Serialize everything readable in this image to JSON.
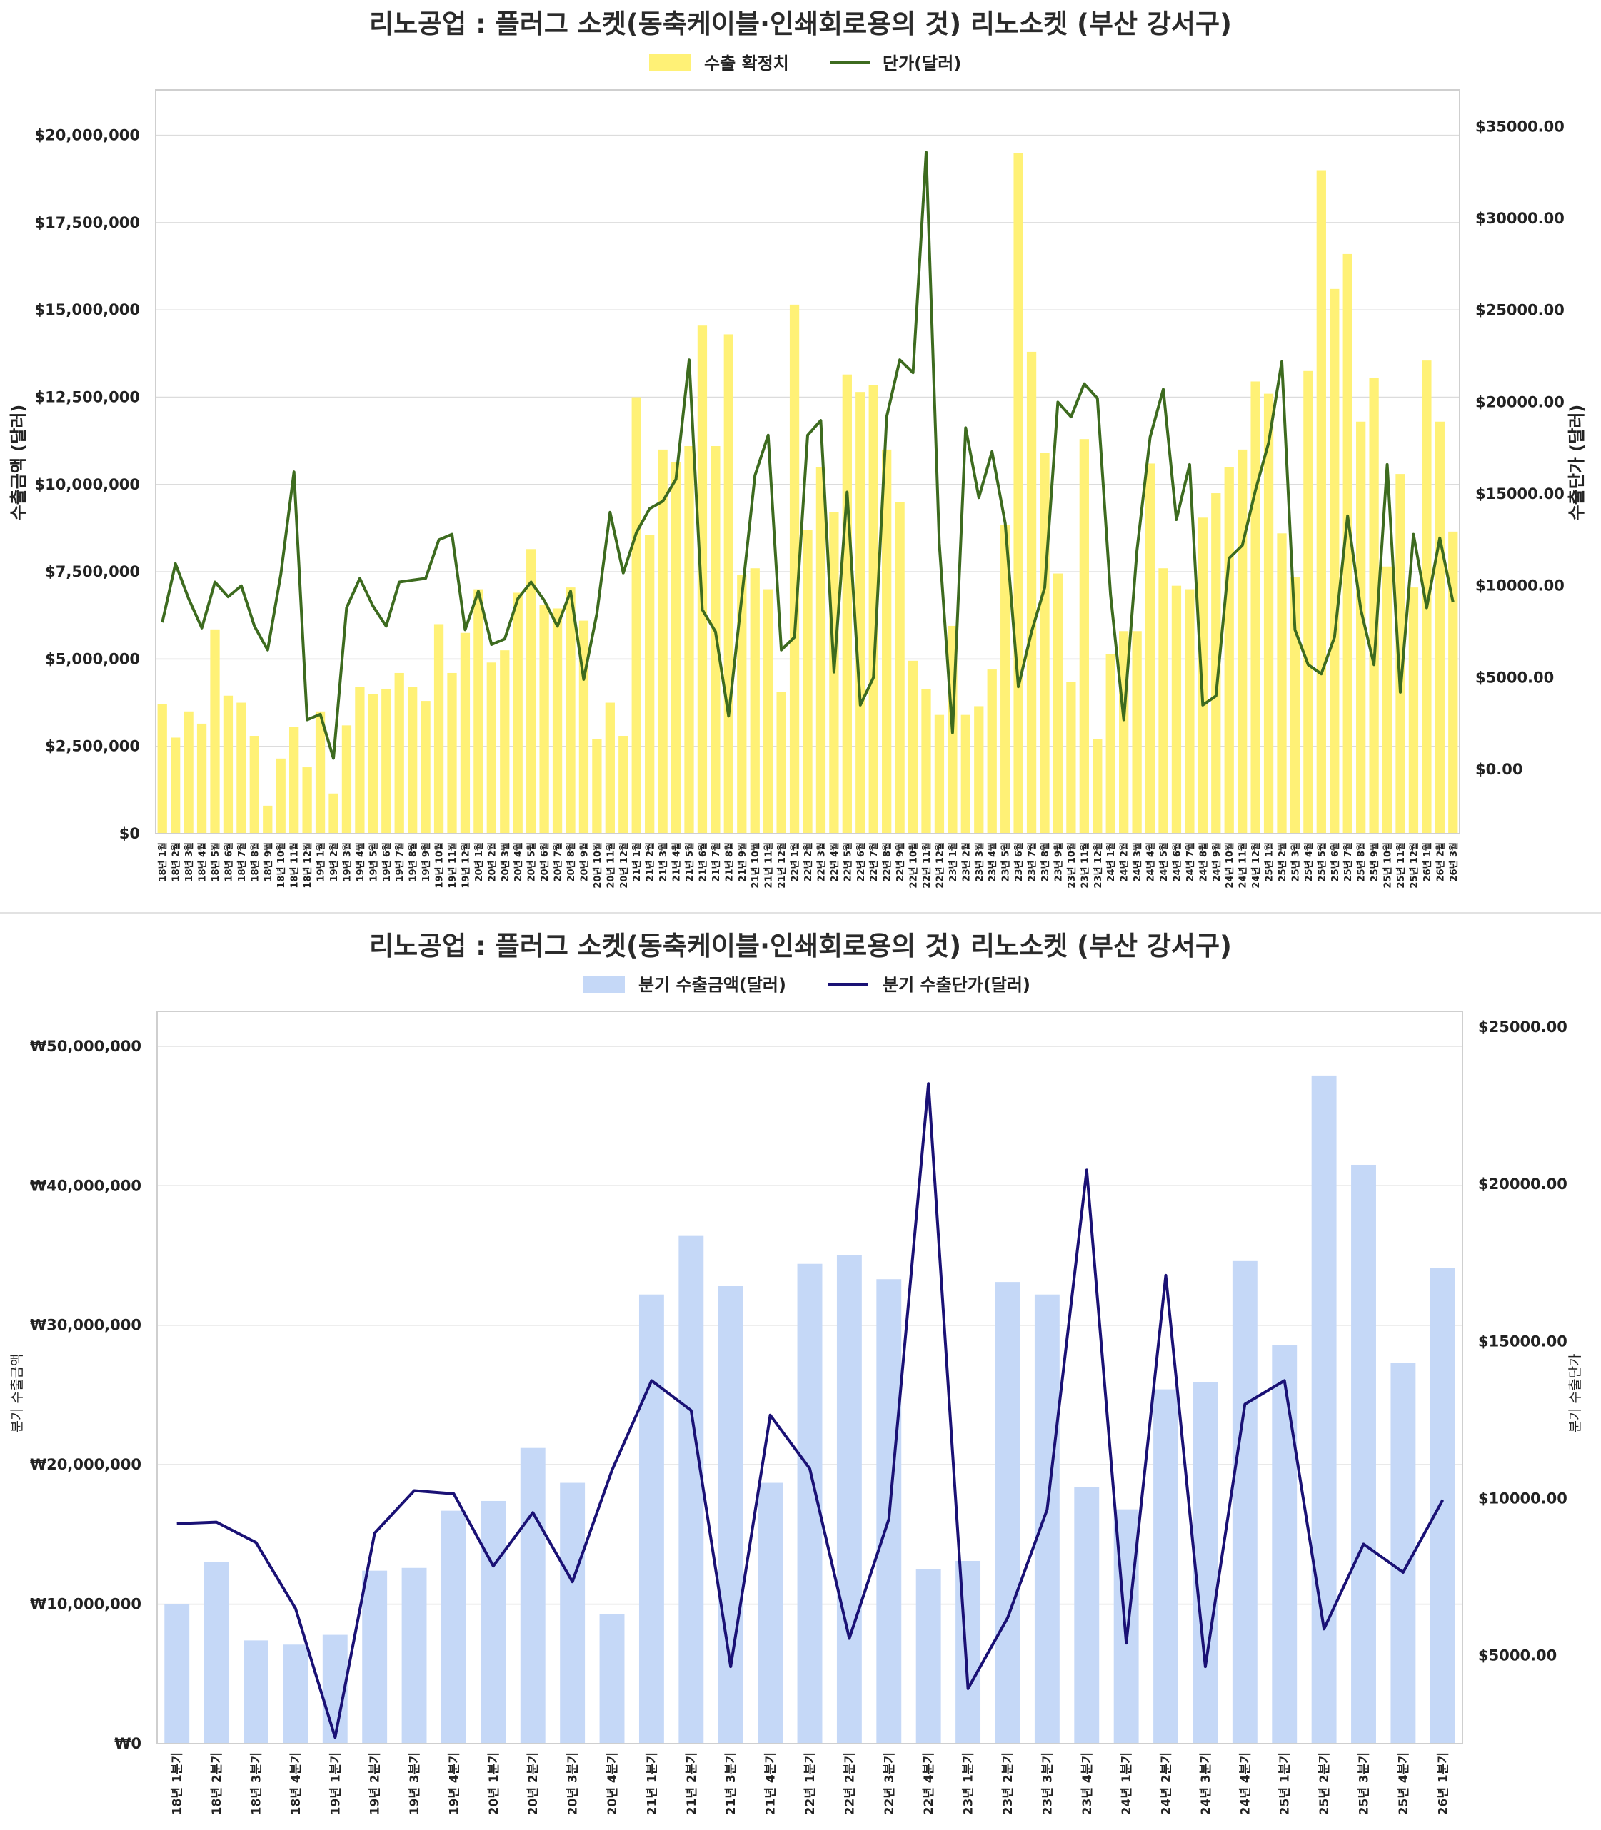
{
  "chart_data": [
    {
      "type": "bar",
      "title": "리노공업 : 플러그 소켓(동축케이블·인쇄회로용의 것) 리노소켓 (부산 강서구)",
      "legend": {
        "position": "top-center",
        "bar_label": "수출 확정치",
        "line_label": "단가(달러)"
      },
      "ylabel_left": "수출금액 (달러)",
      "ylabel_right": "수출단가 (달러)",
      "ylim_left": [
        0,
        21300000
      ],
      "ylim_right": [
        -3500,
        37000
      ],
      "yticks_left": [
        "$0",
        "$2,500,000",
        "$5,000,000",
        "$7,500,000",
        "$10,000,000",
        "$12,500,000",
        "$15,000,000",
        "$17,500,000",
        "$20,000,000"
      ],
      "yticks_left_values": [
        0,
        2500000,
        5000000,
        7500000,
        10000000,
        12500000,
        15000000,
        17500000,
        20000000
      ],
      "yticks_right": [
        "$0.00",
        "$5000.00",
        "$10000.00",
        "$15000.00",
        "$20000.00",
        "$25000.00",
        "$30000.00",
        "$35000.00"
      ],
      "yticks_right_values": [
        0,
        5000,
        10000,
        15000,
        20000,
        25000,
        30000,
        35000
      ],
      "grid": true,
      "colors": {
        "bar": "#fff176",
        "line": "#3d6b1f"
      },
      "categories": [
        "18년 1월",
        "18년 2월",
        "18년 3월",
        "18년 4월",
        "18년 5월",
        "18년 6월",
        "18년 7월",
        "18년 8월",
        "18년 9월",
        "18년 10월",
        "18년 11월",
        "18년 12월",
        "19년 1월",
        "19년 2월",
        "19년 3월",
        "19년 4월",
        "19년 5월",
        "19년 6월",
        "19년 7월",
        "19년 8월",
        "19년 9월",
        "19년 10월",
        "19년 11월",
        "19년 12월",
        "20년 1월",
        "20년 2월",
        "20년 3월",
        "20년 4월",
        "20년 5월",
        "20년 6월",
        "20년 7월",
        "20년 8월",
        "20년 9월",
        "20년 10월",
        "20년 11월",
        "20년 12월",
        "21년 1월",
        "21년 2월",
        "21년 3월",
        "21년 4월",
        "21년 5월",
        "21년 6월",
        "21년 7월",
        "21년 8월",
        "21년 9월",
        "21년 10월",
        "21년 11월",
        "21년 12월",
        "22년 1월",
        "22년 2월",
        "22년 3월",
        "22년 4월",
        "22년 5월",
        "22년 6월",
        "22년 7월",
        "22년 8월",
        "22년 9월",
        "22년 10월",
        "22년 11월",
        "22년 12월",
        "23년 1월",
        "23년 2월",
        "23년 3월",
        "23년 4월",
        "23년 5월",
        "23년 6월",
        "23년 7월",
        "23년 8월",
        "23년 9월",
        "23년 10월",
        "23년 11월",
        "23년 12월",
        "24년 1월",
        "24년 2월",
        "24년 3월",
        "24년 4월",
        "24년 5월",
        "24년 6월",
        "24년 7월",
        "24년 8월",
        "24년 9월",
        "24년 10월",
        "24년 11월",
        "24년 12월",
        "25년 1월",
        "25년 2월",
        "25년 3월",
        "25년 4월",
        "25년 5월",
        "25년 6월",
        "25년 7월",
        "25년 8월",
        "25년 9월",
        "25년 10월",
        "25년 11월",
        "25년 12월",
        "26년 1월",
        "26년 2월",
        "26년 3월"
      ],
      "bar_values": [
        3700000,
        2750000,
        3500000,
        3150000,
        5850000,
        3950000,
        3750000,
        2800000,
        800000,
        2150000,
        3050000,
        1900000,
        3500000,
        1150000,
        3100000,
        4200000,
        4000000,
        4150000,
        4600000,
        4200000,
        3800000,
        6000000,
        4600000,
        5750000,
        7000000,
        4900000,
        5250000,
        6900000,
        8150000,
        6550000,
        6450000,
        7050000,
        6100000,
        2700000,
        3750000,
        2800000,
        12500000,
        8550000,
        11000000,
        10650000,
        11100000,
        14550000,
        11100000,
        14300000,
        7400000,
        7600000,
        7000000,
        4050000,
        15150000,
        8700000,
        10500000,
        9200000,
        13150000,
        12650000,
        12850000,
        11000000,
        9500000,
        4950000,
        4150000,
        3400000,
        5950000,
        3400000,
        3650000,
        4700000,
        8850000,
        19500000,
        13800000,
        10900000,
        7450000,
        4350000,
        11300000,
        2700000,
        5150000,
        5800000,
        5800000,
        10600000,
        7600000,
        7100000,
        7000000,
        9050000,
        9750000,
        10500000,
        11000000,
        12950000,
        12600000,
        8600000,
        7350000,
        13250000,
        19000000,
        15600000,
        16600000,
        11800000,
        13050000,
        7650000,
        10300000,
        7050000,
        13550000,
        11800000,
        8650000
      ],
      "line_values": [
        8000,
        11200,
        9300,
        7700,
        10200,
        9400,
        10000,
        7800,
        6500,
        10600,
        16200,
        2700,
        3000,
        600,
        8800,
        10400,
        8900,
        7800,
        10200,
        10300,
        10400,
        12500,
        12800,
        7600,
        9700,
        6800,
        7100,
        9300,
        10200,
        9200,
        7800,
        9700,
        4900,
        8500,
        14000,
        10700,
        12900,
        14200,
        14600,
        15800,
        22300,
        8700,
        7500,
        2900,
        9400,
        16000,
        18200,
        6500,
        7200,
        18200,
        19000,
        5300,
        15100,
        3500,
        5000,
        19200,
        22300,
        21600,
        33600,
        12300,
        2000,
        18600,
        14800,
        17300,
        13400,
        4500,
        7500,
        9900,
        20000,
        19200,
        21000,
        20200,
        9500,
        2700,
        11900,
        18100,
        20700,
        13600,
        16600,
        3500,
        4000,
        11500,
        12200,
        15200,
        17800,
        22200,
        7600,
        5700,
        5200,
        7200,
        13800,
        8700,
        5700,
        16600,
        4200,
        12800,
        8800,
        12600,
        9100
      ]
    },
    {
      "type": "bar",
      "title": "리노공업 : 플러그 소켓(동축케이블·인쇄회로용의 것) 리노소켓 (부산 강서구)",
      "legend": {
        "position": "top-center",
        "bar_label": "분기 수출금액(달러)",
        "line_label": "분기 수출단가(달러)"
      },
      "ylabel_left": "분기 수출금액",
      "ylabel_right": "분기 수출단가",
      "ylim_left": [
        0,
        52500000
      ],
      "ylim_right": [
        2200,
        25500
      ],
      "yticks_left": [
        "₩0",
        "₩10,000,000",
        "₩20,000,000",
        "₩30,000,000",
        "₩40,000,000",
        "₩50,000,000"
      ],
      "yticks_left_values": [
        0,
        10000000,
        20000000,
        30000000,
        40000000,
        50000000
      ],
      "yticks_right": [
        "$5000.00",
        "$10000.00",
        "$15000.00",
        "$20000.00",
        "$25000.00"
      ],
      "yticks_right_values": [
        5000,
        10000,
        15000,
        20000,
        25000
      ],
      "grid": true,
      "colors": {
        "bar": "#c5d8f7",
        "line": "#1a1175"
      },
      "categories": [
        "18년 1분기",
        "18년 2분기",
        "18년 3분기",
        "18년 4분기",
        "19년 1분기",
        "19년 2분기",
        "19년 3분기",
        "19년 4분기",
        "20년 1분기",
        "20년 2분기",
        "20년 3분기",
        "20년 4분기",
        "21년 1분기",
        "21년 2분기",
        "21년 3분기",
        "21년 4분기",
        "22년 1분기",
        "22년 2분기",
        "22년 3분기",
        "22년 4분기",
        "23년 1분기",
        "23년 2분기",
        "23년 3분기",
        "23년 4분기",
        "24년 1분기",
        "24년 2분기",
        "24년 3분기",
        "24년 4분기",
        "25년 1분기",
        "25년 2분기",
        "25년 3분기",
        "25년 4분기",
        "26년 1분기"
      ],
      "bar_values": [
        10000000,
        13000000,
        7400000,
        7100000,
        7800000,
        12400000,
        12600000,
        16700000,
        17400000,
        21200000,
        18700000,
        9300000,
        32200000,
        36400000,
        32800000,
        18700000,
        34400000,
        35000000,
        33300000,
        12500000,
        13100000,
        33100000,
        32200000,
        18400000,
        16800000,
        25400000,
        25900000,
        34600000,
        28600000,
        47900000,
        41500000,
        27300000,
        34100000
      ],
      "line_values": [
        9200,
        9250,
        8600,
        6500,
        2400,
        8900,
        10250,
        10150,
        7850,
        9550,
        7350,
        10900,
        13750,
        12800,
        4650,
        12650,
        10950,
        5550,
        9350,
        23200,
        3950,
        6200,
        9650,
        20450,
        5400,
        17100,
        4650,
        13000,
        13750,
        5850,
        8550,
        7650,
        9950
      ]
    }
  ]
}
